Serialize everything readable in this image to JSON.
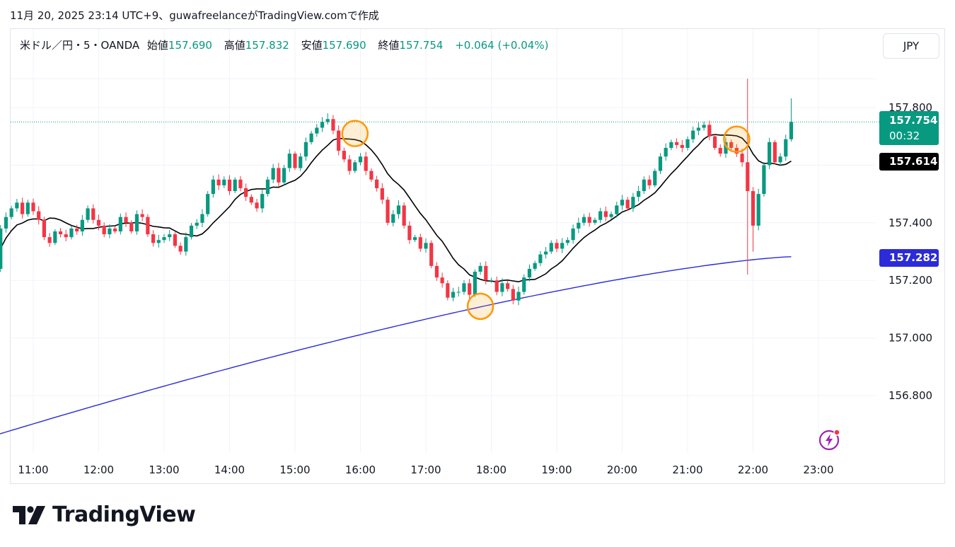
{
  "caption": "11月 20, 2025 23:14 UTC+9、guwafreelanceがTradingView.comで作成",
  "legend": {
    "symbol": "米ドル／円・5・OANDA",
    "open_label": "始値",
    "open": "157.690",
    "high_label": "高値",
    "high": "157.832",
    "low_label": "安値",
    "low": "157.690",
    "close_label": "終値",
    "close": "157.754",
    "change": "+0.064 (+0.04%)"
  },
  "currency_button": "JPY",
  "price_tags": {
    "last": "157.754",
    "countdown": "00:32",
    "ma20": "157.614",
    "ma200": "157.282"
  },
  "brand": "TradingView",
  "icons": {
    "logo": "tradingview-logo-icon",
    "alert": "lightning-bolt-icon"
  },
  "colors": {
    "up": "#089981",
    "down": "#f23645",
    "ma_short": "#000000",
    "ma_long": "#2b2bd9",
    "highlight": "#ff9800"
  },
  "chart_data": {
    "type": "candlestick",
    "symbol": "USDJPY",
    "interval_minutes": 5,
    "y_ticks": [
      157.8,
      157.4,
      157.2,
      157.0,
      156.8
    ],
    "y_tick_labels": [
      "157.800",
      "157.400",
      "157.200",
      "157.000",
      "156.800"
    ],
    "ylim": [
      156.65,
      157.96
    ],
    "x_start": "10:25",
    "x_ticks": [
      "11:00",
      "12:00",
      "13:00",
      "14:00",
      "15:00",
      "16:00",
      "17:00",
      "18:00",
      "19:00",
      "20:00",
      "21:00",
      "22:00",
      "23:00"
    ],
    "grid": true,
    "closes": [
      157.24,
      157.38,
      157.42,
      157.45,
      157.47,
      157.43,
      157.47,
      157.44,
      157.41,
      157.35,
      157.33,
      157.37,
      157.36,
      157.35,
      157.38,
      157.37,
      157.41,
      157.45,
      157.41,
      157.39,
      157.36,
      157.38,
      157.37,
      157.42,
      157.4,
      157.37,
      157.43,
      157.42,
      157.36,
      157.33,
      157.34,
      157.35,
      157.36,
      157.32,
      157.3,
      157.35,
      157.39,
      157.4,
      157.43,
      157.5,
      157.55,
      157.53,
      157.55,
      157.51,
      157.55,
      157.52,
      157.49,
      157.47,
      157.45,
      157.5,
      157.55,
      157.59,
      157.54,
      157.59,
      157.64,
      157.59,
      157.63,
      157.68,
      157.71,
      157.73,
      157.75,
      157.76,
      157.72,
      157.65,
      157.62,
      157.58,
      157.61,
      157.63,
      157.58,
      157.55,
      157.52,
      157.48,
      157.4,
      157.43,
      157.46,
      157.39,
      157.34,
      157.35,
      157.31,
      157.33,
      157.25,
      157.21,
      157.19,
      157.14,
      157.16,
      157.16,
      157.19,
      157.15,
      157.23,
      157.25,
      157.2,
      157.2,
      157.16,
      157.19,
      157.17,
      157.13,
      157.16,
      157.21,
      157.24,
      157.26,
      157.29,
      157.3,
      157.33,
      157.31,
      157.33,
      157.34,
      157.38,
      157.4,
      157.42,
      157.4,
      157.41,
      157.44,
      157.42,
      157.43,
      157.46,
      157.48,
      157.45,
      157.49,
      157.51,
      157.55,
      157.53,
      157.58,
      157.63,
      157.66,
      157.68,
      157.67,
      157.66,
      157.69,
      157.72,
      157.73,
      157.74,
      157.7,
      157.66,
      157.64,
      157.68,
      157.66,
      157.64,
      157.61,
      157.51,
      157.39,
      157.5,
      157.6,
      157.68,
      157.61,
      157.63,
      157.69,
      157.75
    ],
    "moving_averages": [
      {
        "period": "short",
        "last_value": 157.614
      },
      {
        "period": "long",
        "last_value": 157.282
      }
    ],
    "annotations": [
      {
        "type": "circle",
        "time": "15:55",
        "price": 157.71
      },
      {
        "type": "circle",
        "time": "17:50",
        "price": 157.11
      },
      {
        "type": "circle",
        "time": "21:45",
        "price": 157.69
      }
    ]
  }
}
